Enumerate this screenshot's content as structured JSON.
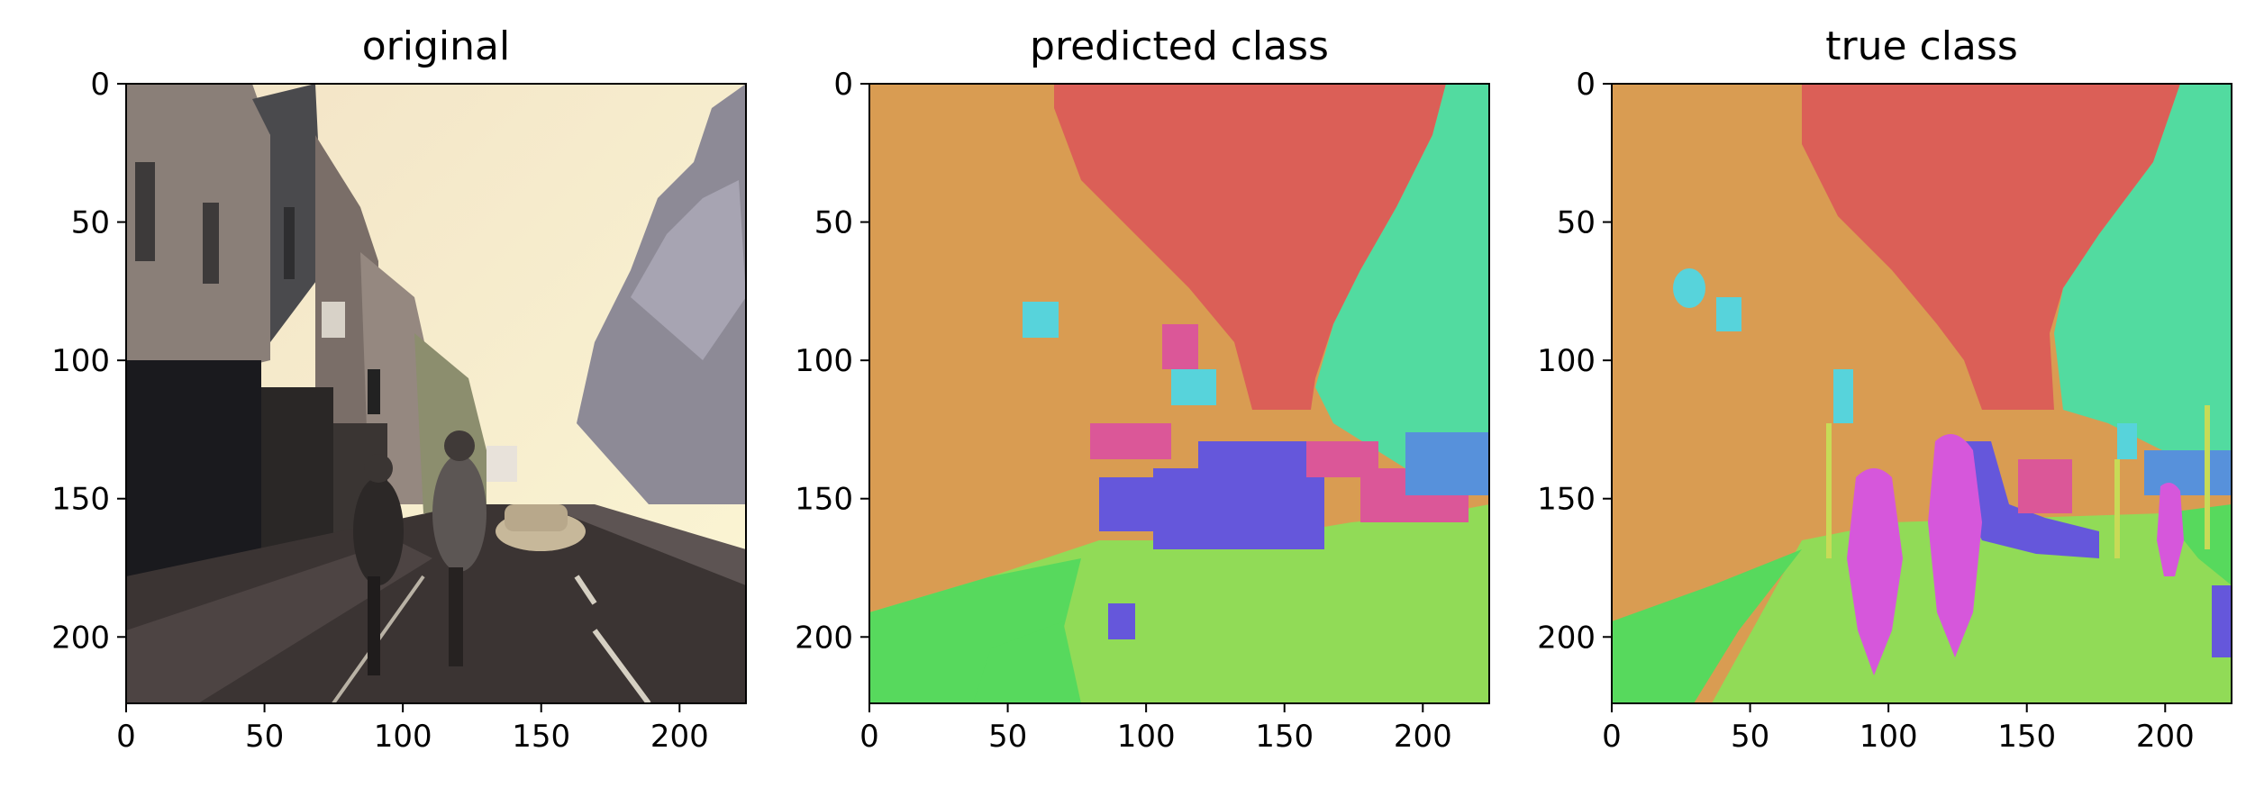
{
  "chart_data": [
    {
      "type": "heatmap",
      "title": "original",
      "xticks": [
        0,
        50,
        100,
        150,
        200
      ],
      "yticks": [
        0,
        50,
        100,
        150,
        200
      ],
      "xlim": [
        0,
        224
      ],
      "ylim": [
        224,
        0
      ],
      "content": "street-scene photograph"
    },
    {
      "type": "heatmap",
      "title": "predicted class",
      "xticks": [
        0,
        50,
        100,
        150,
        200
      ],
      "yticks": [
        0,
        50,
        100,
        150,
        200
      ],
      "xlim": [
        0,
        224
      ],
      "ylim": [
        224,
        0
      ],
      "content": "segmentation label map"
    },
    {
      "type": "heatmap",
      "title": "true class",
      "xticks": [
        0,
        50,
        100,
        150,
        200
      ],
      "yticks": [
        0,
        50,
        100,
        150,
        200
      ],
      "xlim": [
        0,
        224
      ],
      "ylim": [
        224,
        0
      ],
      "content": "segmentation label map"
    }
  ],
  "palette": {
    "building": "#D99C52",
    "sky": "#DB5F57",
    "tree": "#52DBA0",
    "road": "#91DB57",
    "sidewalk": "#57D95D",
    "car": "#6557DB",
    "pedestrian": "#D657DB",
    "sign": "#57D3DB",
    "fence": "#5791DB",
    "bicyclist": "#DB5798",
    "pole": "#C7DB57"
  }
}
